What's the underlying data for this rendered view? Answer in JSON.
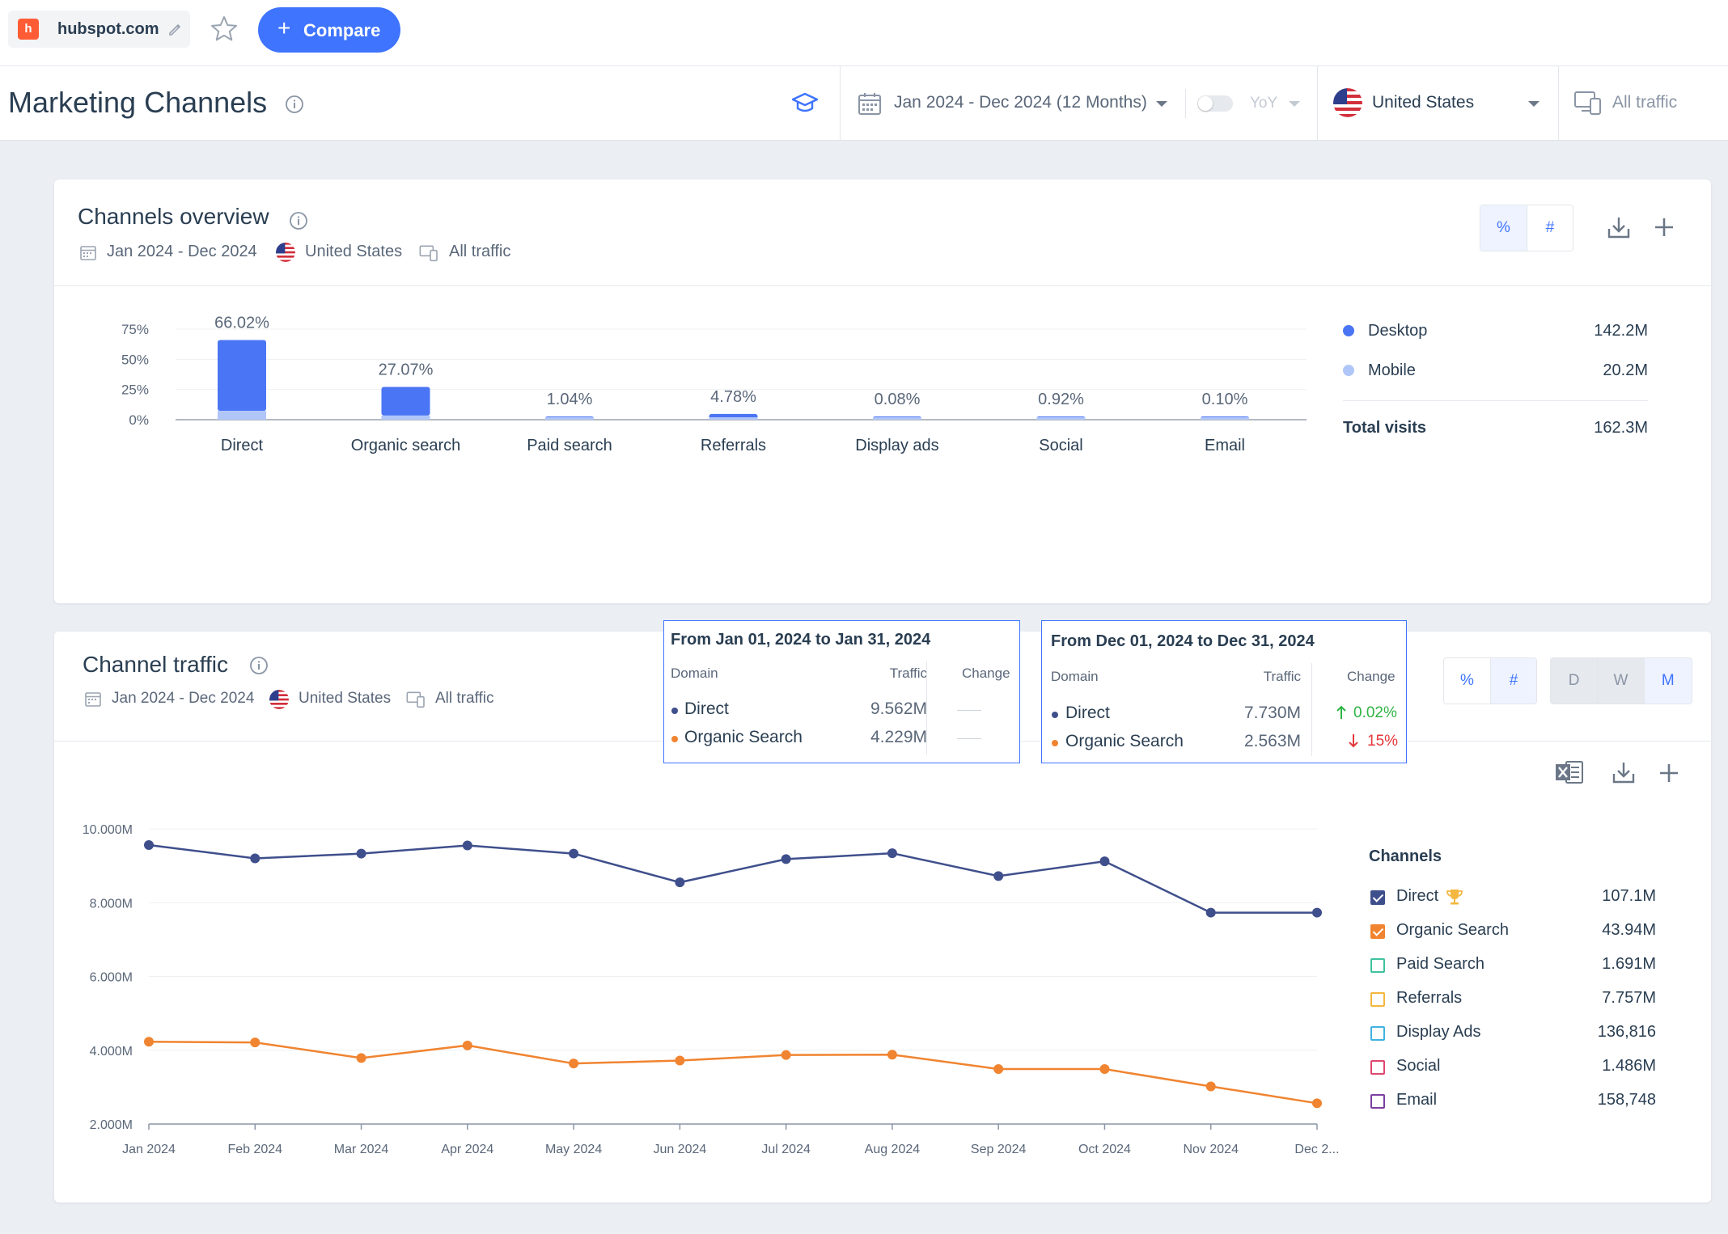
{
  "topbar": {
    "domain": "hubspot.com",
    "compare_label": "Compare"
  },
  "header": {
    "title": "Marketing Channels",
    "date_range": "Jan 2024 - Dec 2024 (12 Months)",
    "yoy_label": "YoY",
    "country": "United States",
    "traffic": "All traffic"
  },
  "overview": {
    "title": "Channels overview",
    "meta": {
      "date": "Jan 2024 - Dec 2024",
      "country": "United States",
      "traffic": "All traffic"
    },
    "toggle": {
      "pct": "%",
      "num": "#"
    },
    "legend": {
      "desktop_label": "Desktop",
      "desktop_value": "142.2M",
      "mobile_label": "Mobile",
      "mobile_value": "20.2M",
      "total_label": "Total visits",
      "total_value": "162.3M"
    },
    "colors": {
      "desktop": "#4a75f4",
      "mobile": "#b1c6f8"
    }
  },
  "traffic": {
    "title": "Channel traffic",
    "meta": {
      "date": "Jan 2024 - Dec 2024",
      "country": "United States",
      "traffic": "All traffic"
    },
    "toggle": {
      "pct": "%",
      "num": "#"
    },
    "granularity": {
      "d": "D",
      "w": "W",
      "m": "M",
      "selected": "M"
    },
    "legend_title": "Channels",
    "channels": [
      {
        "name": "Direct",
        "value": "107.1M",
        "color": "#3f4f8c",
        "checked": true
      },
      {
        "name": "Organic Search",
        "value": "43.94M",
        "color": "#f08430",
        "checked": true
      },
      {
        "name": "Paid Search",
        "value": "1.691M",
        "color": "#3ec29e",
        "checked": false
      },
      {
        "name": "Referrals",
        "value": "7.757M",
        "color": "#f4b73f",
        "checked": false
      },
      {
        "name": "Display Ads",
        "value": "136,816",
        "color": "#40b3e0",
        "checked": false
      },
      {
        "name": "Social",
        "value": "1.486M",
        "color": "#e0476f",
        "checked": false
      },
      {
        "name": "Email",
        "value": "158,748",
        "color": "#7b3fa0",
        "checked": false
      }
    ],
    "tooltip1": {
      "title": "From Jan 01, 2024 to Jan 31, 2024",
      "col_domain": "Domain",
      "col_traffic": "Traffic",
      "col_change": "Change",
      "rows": [
        {
          "name": "Direct",
          "value": "9.562M",
          "change": ""
        },
        {
          "name": "Organic Search",
          "value": "4.229M",
          "change": ""
        }
      ]
    },
    "tooltip2": {
      "title": "From Dec 01, 2024 to Dec 31, 2024",
      "col_domain": "Domain",
      "col_traffic": "Traffic",
      "col_change": "Change",
      "rows": [
        {
          "name": "Direct",
          "value": "7.730M",
          "change": "0.02%",
          "direction": "up",
          "change_color": "#2fb344"
        },
        {
          "name": "Organic Search",
          "value": "2.563M",
          "change": "15%",
          "direction": "down",
          "change_color": "#e4383b"
        }
      ]
    }
  },
  "chart_data": [
    {
      "type": "bar",
      "stacked": true,
      "categories": [
        "Direct",
        "Organic search",
        "Paid search",
        "Referrals",
        "Display ads",
        "Social",
        "Email"
      ],
      "data_labels": [
        "66.02%",
        "27.07%",
        "1.04%",
        "4.78%",
        "0.08%",
        "0.92%",
        "0.10%"
      ],
      "series": [
        {
          "name": "Desktop",
          "values": [
            58.7,
            23.7,
            1.0,
            4.3,
            0.07,
            0.85,
            0.09
          ]
        },
        {
          "name": "Mobile",
          "values": [
            7.3,
            3.4,
            0.04,
            0.5,
            0.01,
            0.07,
            0.01
          ]
        }
      ],
      "yticks": [
        "0%",
        "25%",
        "50%",
        "75%"
      ],
      "ylim": [
        0,
        75
      ],
      "grid": true
    },
    {
      "type": "line",
      "x": [
        "Jan 2024",
        "Feb 2024",
        "Mar 2024",
        "Apr 2024",
        "May 2024",
        "Jun 2024",
        "Jul 2024",
        "Aug 2024",
        "Sep 2024",
        "Oct 2024",
        "Nov 2024",
        "Dec 2..."
      ],
      "series": [
        {
          "name": "Direct",
          "values": [
            9.562,
            9.2,
            9.33,
            9.55,
            9.33,
            8.55,
            9.18,
            9.34,
            8.72,
            9.12,
            7.73,
            7.73
          ]
        },
        {
          "name": "Organic Search",
          "values": [
            4.229,
            4.21,
            3.79,
            4.13,
            3.64,
            3.72,
            3.87,
            3.88,
            3.49,
            3.49,
            3.02,
            2.563
          ]
        }
      ],
      "yticks": [
        "2.000M",
        "4.000M",
        "6.000M",
        "8.000M",
        "10.000M"
      ],
      "ylim": [
        2,
        10
      ],
      "grid": true,
      "legend": "right"
    }
  ]
}
